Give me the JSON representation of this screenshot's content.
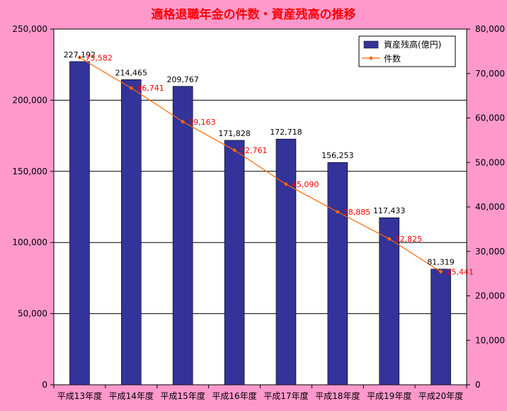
{
  "chart_data": {
    "type": "bar",
    "title": "適格退職年金の件数・資産残高の推移",
    "categories": [
      "平成13年度",
      "平成14年度",
      "平成15年度",
      "平成16年度",
      "平成17年度",
      "平成18年度",
      "平成19年度",
      "平成20年度"
    ],
    "series": [
      {
        "name": "資産残高(億円)",
        "type": "bar",
        "axis": "left",
        "color": "#333399",
        "values": [
          227192,
          214465,
          209767,
          171828,
          172718,
          156253,
          117433,
          81319
        ],
        "labels": [
          "227,192",
          "214,465",
          "209,767",
          "171,828",
          "172,718",
          "156,253",
          "117,433",
          "81,319"
        ]
      },
      {
        "name": "件数",
        "type": "line",
        "axis": "right",
        "color": "#ff6600",
        "label_color": "#ff0000",
        "values": [
          73582,
          66741,
          59163,
          52761,
          45090,
          38885,
          32825,
          25441
        ],
        "labels": [
          "73,582",
          "66,741",
          "59,163",
          "52,761",
          "45,090",
          "38,885",
          "32,825",
          "25,441"
        ]
      }
    ],
    "y_left": {
      "min": 0,
      "max": 250000,
      "ticks": [
        0,
        50000,
        100000,
        150000,
        200000,
        250000
      ],
      "tick_labels": [
        "0",
        "50,000",
        "100,000",
        "150,000",
        "200,000",
        "250,000"
      ]
    },
    "y_right": {
      "min": 0,
      "max": 80000,
      "ticks": [
        0,
        10000,
        20000,
        30000,
        40000,
        50000,
        60000,
        70000,
        80000
      ],
      "tick_labels": [
        "0",
        "10,000",
        "20,000",
        "30,000",
        "40,000",
        "50,000",
        "60,000",
        "70,000",
        "80,000"
      ]
    },
    "grid": true,
    "legend": "top-right",
    "colors": {
      "background": "#ff99cc",
      "plot_background": "#ffffff",
      "title": "#ff0000"
    }
  }
}
